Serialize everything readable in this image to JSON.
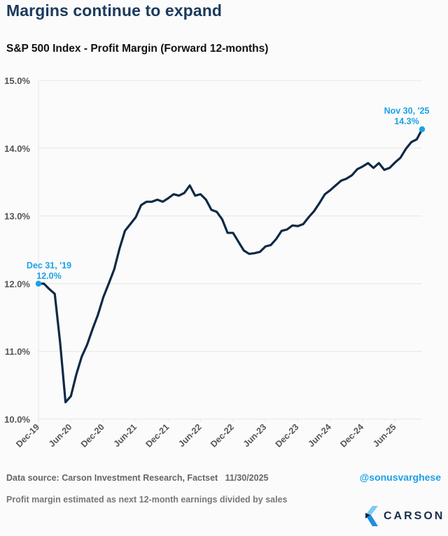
{
  "headline": "Margins continue to expand",
  "chart_data": {
    "type": "line",
    "title": "S&P 500 Index - Profit Margin (Forward 12-months)",
    "xlabel": "",
    "ylabel": "",
    "ylim": [
      10.0,
      15.0
    ],
    "yticks": [
      "15.0%",
      "14.0%",
      "13.0%",
      "12.0%",
      "11.0%",
      "10.0%"
    ],
    "ytick_values": [
      15,
      14,
      13,
      12,
      11,
      10
    ],
    "xticks": [
      "Dec-19",
      "Jun-20",
      "Dec-20",
      "Jun-21",
      "Dec-21",
      "Jun-22",
      "Dec-22",
      "Jun-23",
      "Dec-23",
      "Jun-24",
      "Dec-24",
      "Jun-25"
    ],
    "grid": true,
    "line_color": "#0f2a44",
    "accent_color": "#1ba1e6",
    "series": [
      {
        "name": "Profit Margin (Forward 12-months)",
        "x_start": "Dec-19",
        "frequency": "monthly",
        "values": [
          12.0,
          12.0,
          11.92,
          11.85,
          11.13,
          10.25,
          10.34,
          10.66,
          10.92,
          11.1,
          11.33,
          11.54,
          11.8,
          12.0,
          12.21,
          12.52,
          12.78,
          12.88,
          12.98,
          13.16,
          13.21,
          13.21,
          13.24,
          13.21,
          13.26,
          13.32,
          13.3,
          13.34,
          13.45,
          13.3,
          13.32,
          13.24,
          13.09,
          13.06,
          12.95,
          12.75,
          12.75,
          12.62,
          12.49,
          12.44,
          12.45,
          12.47,
          12.55,
          12.57,
          12.66,
          12.78,
          12.8,
          12.86,
          12.85,
          12.88,
          12.98,
          13.07,
          13.19,
          13.32,
          13.38,
          13.45,
          13.52,
          13.55,
          13.6,
          13.69,
          13.73,
          13.78,
          13.71,
          13.78,
          13.68,
          13.71,
          13.79,
          13.86,
          13.99,
          14.09,
          14.13,
          14.28
        ]
      }
    ],
    "annotations": [
      {
        "label_date": "Dec 31, '19",
        "label_value": "12.0%",
        "value": 12.0,
        "index": 0
      },
      {
        "label_date": "Nov 30, '25",
        "label_value": "14.3%",
        "value": 14.28,
        "index": 71
      }
    ]
  },
  "footer": {
    "source": "Data source: Carson Investment Research, Factset   11/30/2025",
    "note": "Profit margin estimated as next 12-month earnings divided by sales",
    "handle": "@sonusvarghese",
    "logo_text": "CARSON"
  }
}
